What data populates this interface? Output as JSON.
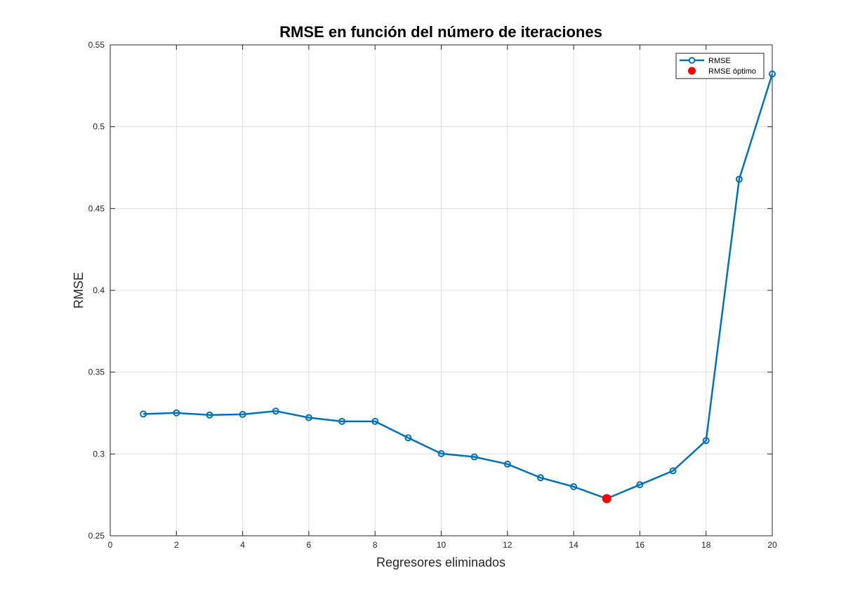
{
  "chart_data": {
    "type": "line",
    "title": "RMSE en función del número de iteraciones",
    "xlabel": "Regresores eliminados",
    "ylabel": "RMSE",
    "xlim": [
      0,
      20
    ],
    "ylim": [
      0.25,
      0.55
    ],
    "xticks": [
      "0",
      "2",
      "4",
      "6",
      "8",
      "10",
      "12",
      "14",
      "16",
      "18",
      "20"
    ],
    "yticks": [
      "0.25",
      "0.3",
      "0.35",
      "0.4",
      "0.45",
      "0.5",
      "0.55"
    ],
    "grid": true,
    "legend_position": "top-right",
    "colors": {
      "series": "#0072BD",
      "optimum": "#FF0000",
      "grid": "#DFDFDF",
      "axis": "#262626"
    },
    "series": [
      {
        "name": "RMSE",
        "marker": "circle",
        "x": [
          1,
          2,
          3,
          4,
          5,
          6,
          7,
          8,
          9,
          10,
          11,
          12,
          13,
          14,
          15,
          16,
          17,
          18,
          19,
          20
        ],
        "y": [
          0.3244,
          0.3251,
          0.3238,
          0.3242,
          0.3262,
          0.3222,
          0.3199,
          0.3199,
          0.3099,
          0.3002,
          0.2982,
          0.2938,
          0.2855,
          0.28,
          0.2727,
          0.2812,
          0.2897,
          0.3082,
          0.4679,
          0.5322
        ]
      },
      {
        "name": "RMSE óptimo",
        "marker": "filled-circle",
        "x": [
          15
        ],
        "y": [
          0.2727
        ]
      }
    ]
  }
}
